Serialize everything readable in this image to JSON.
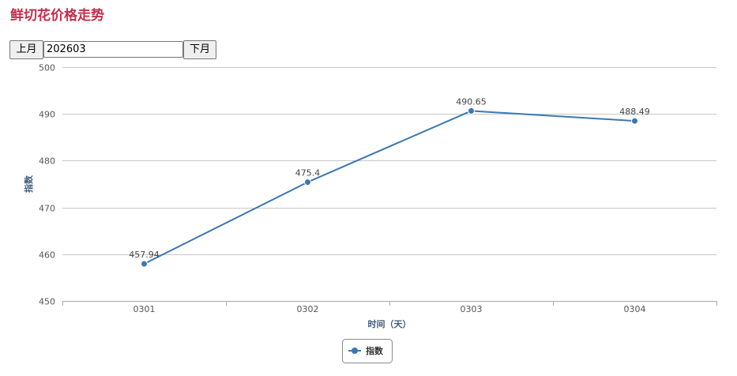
{
  "page": {
    "title": "鲜切花价格走势"
  },
  "toolbar": {
    "prev_label": "上月",
    "month_value": "202603",
    "next_label": "下月"
  },
  "chart_data": {
    "type": "line",
    "title": "",
    "xlabel": "时间（天）",
    "ylabel": "指数",
    "categories": [
      "0301",
      "0302",
      "0303",
      "0304"
    ],
    "ylim": [
      450,
      500
    ],
    "yticks": [
      450,
      460,
      470,
      480,
      490,
      500
    ],
    "grid": true,
    "legend_position": "bottom-center",
    "series": [
      {
        "name": "指数",
        "values": [
          457.94,
          475.4,
          490.65,
          488.49
        ],
        "labels": [
          "457.94",
          "475.4",
          "490.65",
          "488.49"
        ]
      }
    ],
    "colors": {
      "series": "#3b78b0",
      "grid": "#c8c8c8",
      "axis": "#aaaaaa",
      "tick_text": "#555555",
      "axis_title": "#3f5a7a"
    }
  }
}
